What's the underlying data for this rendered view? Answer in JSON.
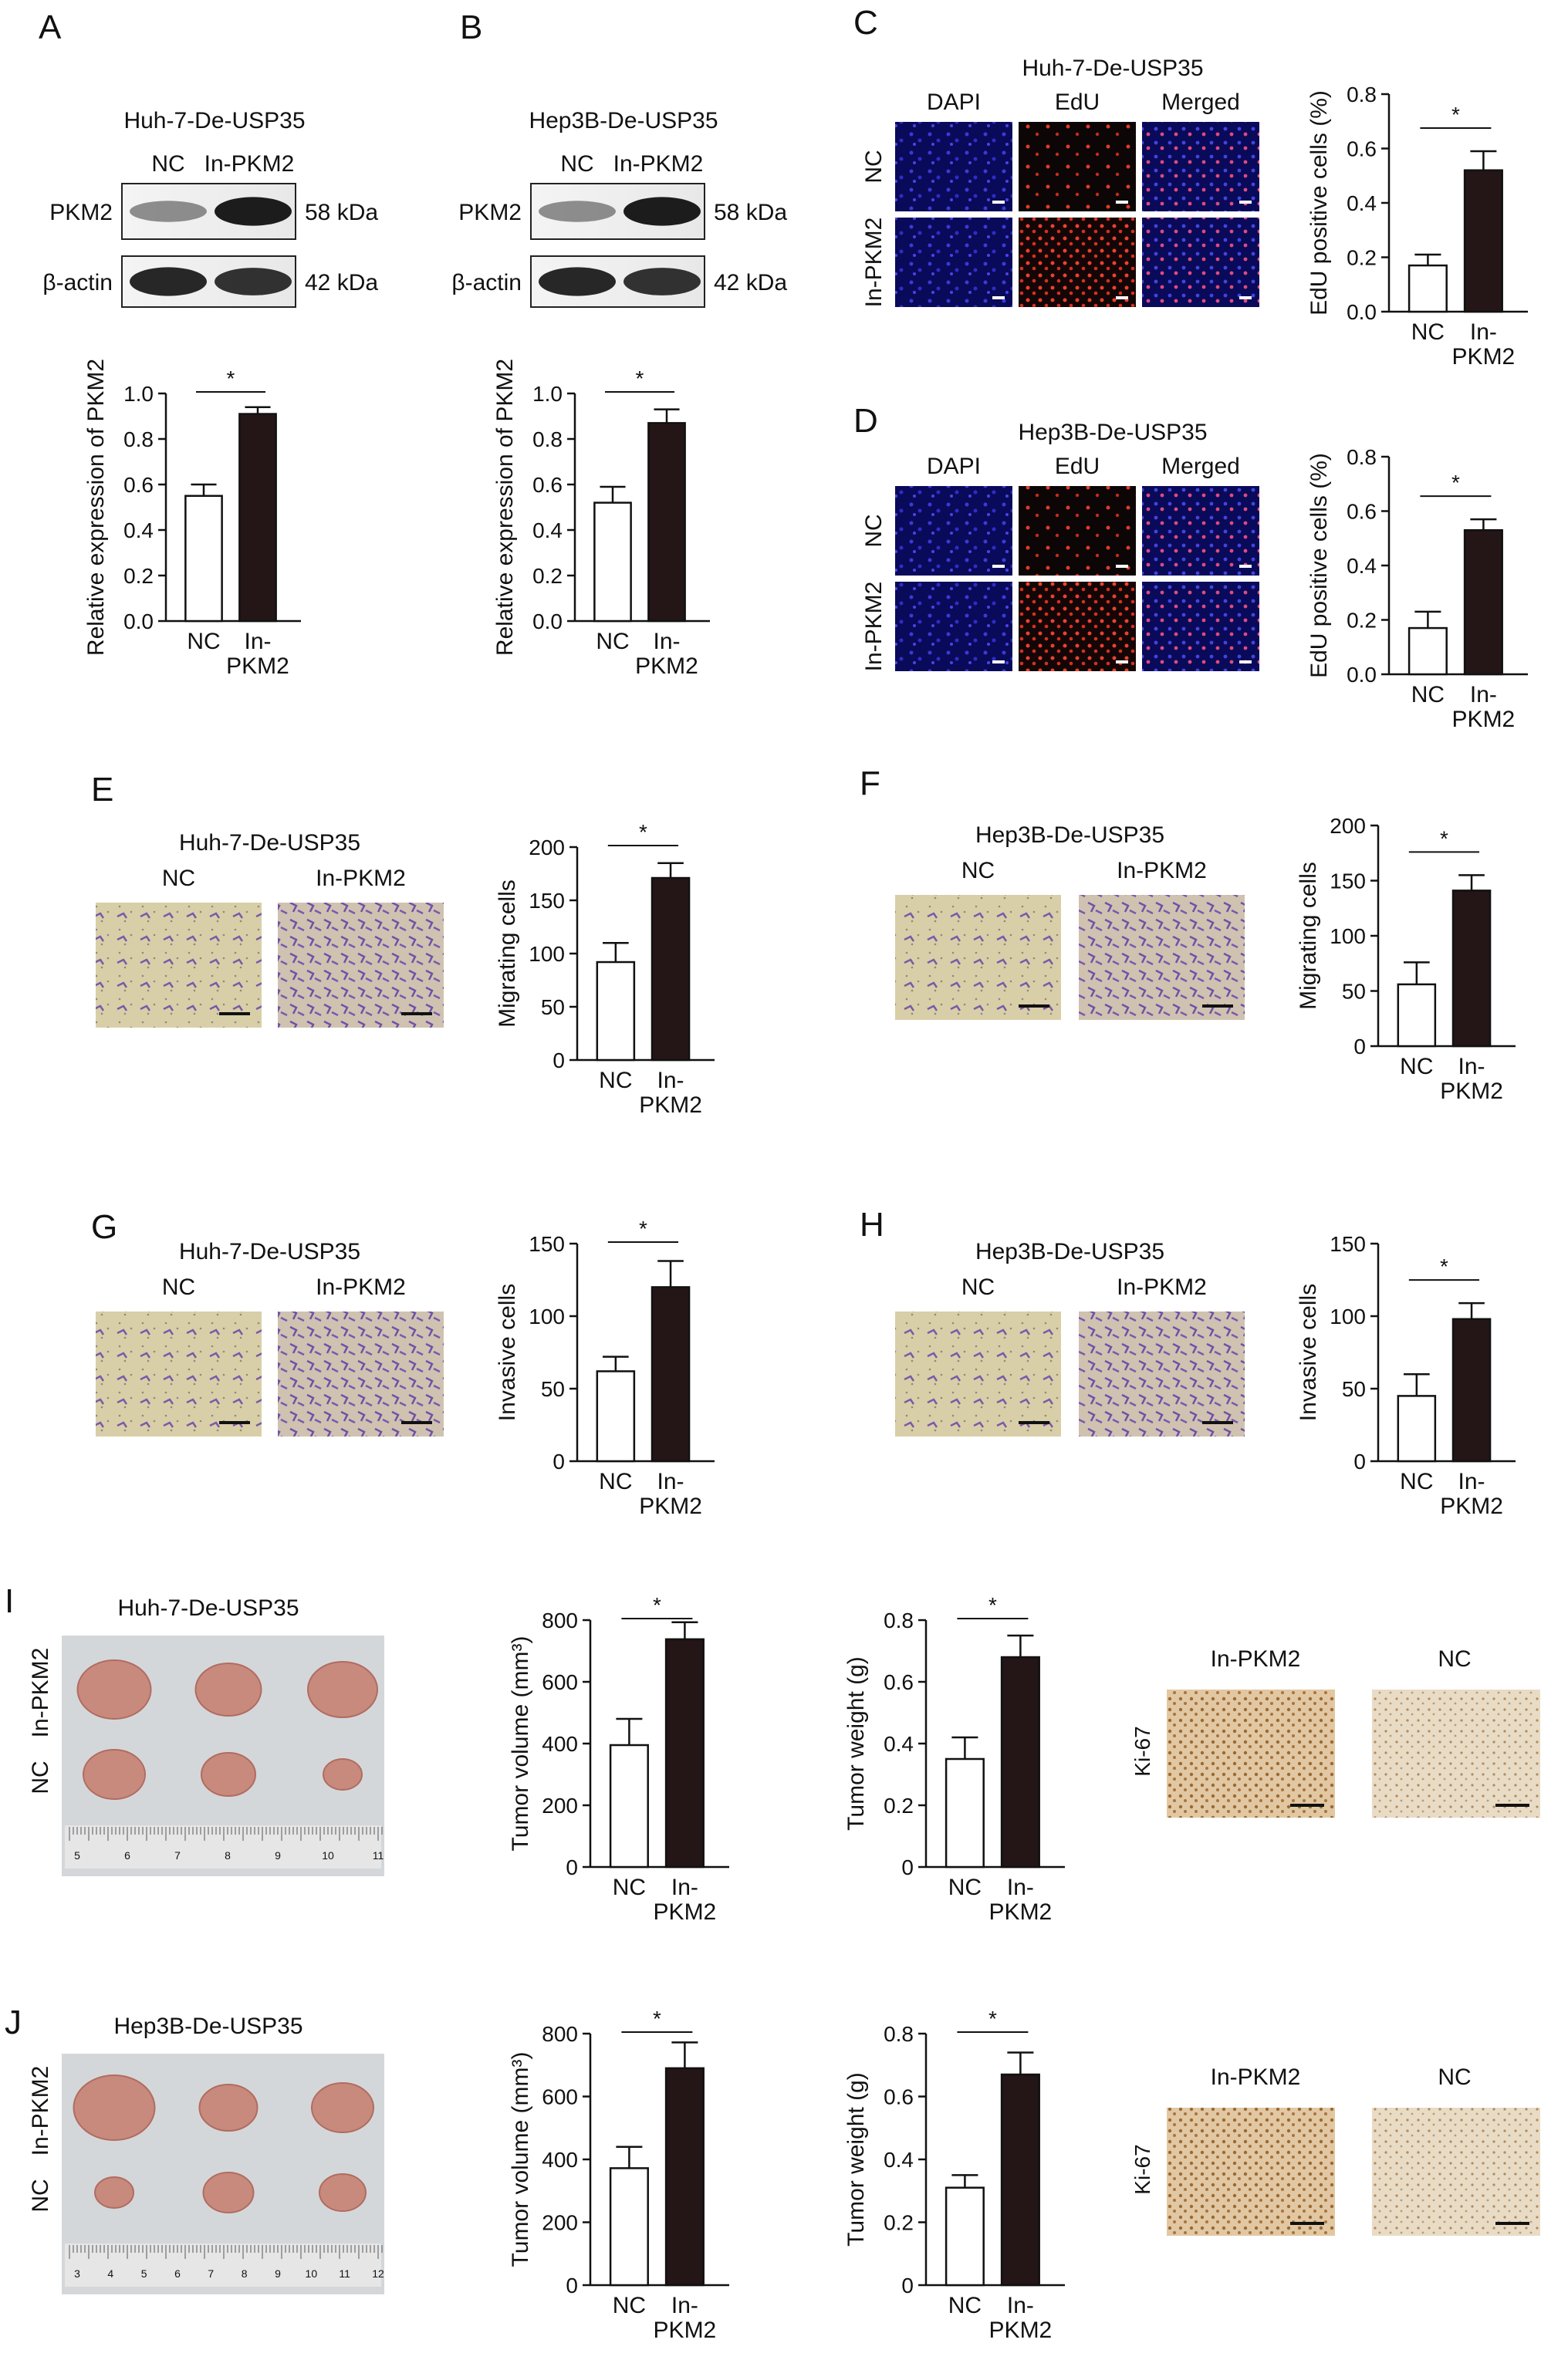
{
  "panels": {
    "A": {
      "letter": "A",
      "title": "Huh-7-De-USP35",
      "lanes": [
        "NC",
        "In-PKM2"
      ],
      "blot_rows": [
        "PKM2",
        "β-actin"
      ],
      "sizes": [
        "58 kDa",
        "42 kDa"
      ]
    },
    "B": {
      "letter": "B",
      "title": "Hep3B-De-USP35",
      "lanes": [
        "NC",
        "In-PKM2"
      ],
      "blot_rows": [
        "PKM2",
        "β-actin"
      ],
      "sizes": [
        "58 kDa",
        "42 kDa"
      ]
    },
    "C": {
      "letter": "C",
      "title": "Huh-7-De-USP35",
      "cols": [
        "DAPI",
        "EdU",
        "Merged"
      ],
      "rows": [
        "NC",
        "In-PKM2"
      ]
    },
    "D": {
      "letter": "D",
      "title": "Hep3B-De-USP35",
      "cols": [
        "DAPI",
        "EdU",
        "Merged"
      ],
      "rows": [
        "NC",
        "In-PKM2"
      ]
    },
    "E": {
      "letter": "E",
      "title": "Huh-7-De-USP35",
      "imgs": [
        "NC",
        "In-PKM2"
      ]
    },
    "F": {
      "letter": "F",
      "title": "Hep3B-De-USP35",
      "imgs": [
        "NC",
        "In-PKM2"
      ]
    },
    "G": {
      "letter": "G",
      "title": "Huh-7-De-USP35",
      "imgs": [
        "NC",
        "In-PKM2"
      ]
    },
    "H": {
      "letter": "H",
      "title": "Hep3B-De-USP35",
      "imgs": [
        "NC",
        "In-PKM2"
      ]
    },
    "I": {
      "letter": "I",
      "title": "Huh-7-De-USP35",
      "rows": [
        "In-PKM2",
        "NC"
      ],
      "ki_cols": [
        "In-PKM2",
        "NC"
      ],
      "ki_label": "Ki-67",
      "ruler": [
        "5",
        "6",
        "7",
        "8",
        "9",
        "10",
        "11"
      ]
    },
    "J": {
      "letter": "J",
      "title": "Hep3B-De-USP35",
      "rows": [
        "In-PKM2",
        "NC"
      ],
      "ki_cols": [
        "In-PKM2",
        "NC"
      ],
      "ki_label": "Ki-67",
      "ruler": [
        "3",
        "4",
        "5",
        "6",
        "7",
        "8",
        "9",
        "10",
        "11",
        "12"
      ]
    }
  },
  "chart_data": [
    {
      "id": "A",
      "type": "bar",
      "categories": [
        "NC",
        "In-\nPKM2"
      ],
      "values": [
        0.55,
        0.91
      ],
      "errors": [
        0.05,
        0.03
      ],
      "ylabel": "Relative expression of PKM2",
      "ylim": [
        0,
        1.0
      ],
      "yticks": [
        "0.0",
        "0.2",
        "0.4",
        "0.6",
        "0.8",
        "1.0"
      ],
      "significance": "*"
    },
    {
      "id": "B",
      "type": "bar",
      "categories": [
        "NC",
        "In-\nPKM2"
      ],
      "values": [
        0.52,
        0.87
      ],
      "errors": [
        0.07,
        0.06
      ],
      "ylabel": "Relative expression of PKM2",
      "ylim": [
        0,
        1.0
      ],
      "yticks": [
        "0.0",
        "0.2",
        "0.4",
        "0.6",
        "0.8",
        "1.0"
      ],
      "significance": "*"
    },
    {
      "id": "C",
      "type": "bar",
      "categories": [
        "NC",
        "In-\nPKM2"
      ],
      "values": [
        0.17,
        0.52
      ],
      "errors": [
        0.04,
        0.07
      ],
      "ylabel": "EdU positive cells (%)",
      "ylim": [
        0,
        0.8
      ],
      "yticks": [
        "0.0",
        "0.2",
        "0.4",
        "0.6",
        "0.8"
      ],
      "significance": "*"
    },
    {
      "id": "D",
      "type": "bar",
      "categories": [
        "NC",
        "In-\nPKM2"
      ],
      "values": [
        0.17,
        0.53
      ],
      "errors": [
        0.06,
        0.04
      ],
      "ylabel": "EdU positive cells (%)",
      "ylim": [
        0,
        0.8
      ],
      "yticks": [
        "0.0",
        "0.2",
        "0.4",
        "0.6",
        "0.8"
      ],
      "significance": "*"
    },
    {
      "id": "E",
      "type": "bar",
      "categories": [
        "NC",
        "In-\nPKM2"
      ],
      "values": [
        92,
        171
      ],
      "errors": [
        18,
        14
      ],
      "ylabel": "Migrating cells",
      "ylim": [
        0,
        200
      ],
      "yticks": [
        "0",
        "50",
        "100",
        "150",
        "200"
      ],
      "significance": "*"
    },
    {
      "id": "F",
      "type": "bar",
      "categories": [
        "NC",
        "In-\nPKM2"
      ],
      "values": [
        56,
        141
      ],
      "errors": [
        20,
        14
      ],
      "ylabel": "Migrating cells",
      "ylim": [
        0,
        200
      ],
      "yticks": [
        "0",
        "50",
        "100",
        "150",
        "200"
      ],
      "significance": "*"
    },
    {
      "id": "G",
      "type": "bar",
      "categories": [
        "NC",
        "In-\nPKM2"
      ],
      "values": [
        62,
        120
      ],
      "errors": [
        10,
        18
      ],
      "ylabel": "Invasive cells",
      "ylim": [
        0,
        150
      ],
      "yticks": [
        "0",
        "50",
        "100",
        "150"
      ],
      "significance": "*"
    },
    {
      "id": "H",
      "type": "bar",
      "categories": [
        "NC",
        "In-\nPKM2"
      ],
      "values": [
        45,
        98
      ],
      "errors": [
        15,
        11
      ],
      "ylabel": "Invasive cells",
      "ylim": [
        0,
        150
      ],
      "yticks": [
        "0",
        "50",
        "100",
        "150"
      ],
      "significance": "*"
    },
    {
      "id": "I1",
      "type": "bar",
      "categories": [
        "NC",
        "In-\nPKM2"
      ],
      "values": [
        395,
        738
      ],
      "errors": [
        85,
        55
      ],
      "ylabel": "Tumor volume (mm³)",
      "ylim": [
        0,
        800
      ],
      "yticks": [
        "0",
        "200",
        "400",
        "600",
        "800"
      ],
      "significance": "*"
    },
    {
      "id": "I2",
      "type": "bar",
      "categories": [
        "NC",
        "In-\nPKM2"
      ],
      "values": [
        0.35,
        0.68
      ],
      "errors": [
        0.07,
        0.07
      ],
      "ylabel": "Tumor weight (g)",
      "ylim": [
        0,
        0.8
      ],
      "yticks": [
        "0",
        "0.2",
        "0.4",
        "0.6",
        "0.8"
      ],
      "significance": "*"
    },
    {
      "id": "J1",
      "type": "bar",
      "categories": [
        "NC",
        "In-\nPKM2"
      ],
      "values": [
        372,
        690
      ],
      "errors": [
        68,
        82
      ],
      "ylabel": "Tumor volume (mm³)",
      "ylim": [
        0,
        800
      ],
      "yticks": [
        "0",
        "200",
        "400",
        "600",
        "800"
      ],
      "significance": "*"
    },
    {
      "id": "J2",
      "type": "bar",
      "categories": [
        "NC",
        "In-\nPKM2"
      ],
      "values": [
        0.31,
        0.67
      ],
      "errors": [
        0.04,
        0.07
      ],
      "ylabel": "Tumor weight (g)",
      "ylim": [
        0,
        0.8
      ],
      "yticks": [
        "0",
        "0.2",
        "0.4",
        "0.6",
        "0.8"
      ],
      "significance": "*"
    }
  ]
}
